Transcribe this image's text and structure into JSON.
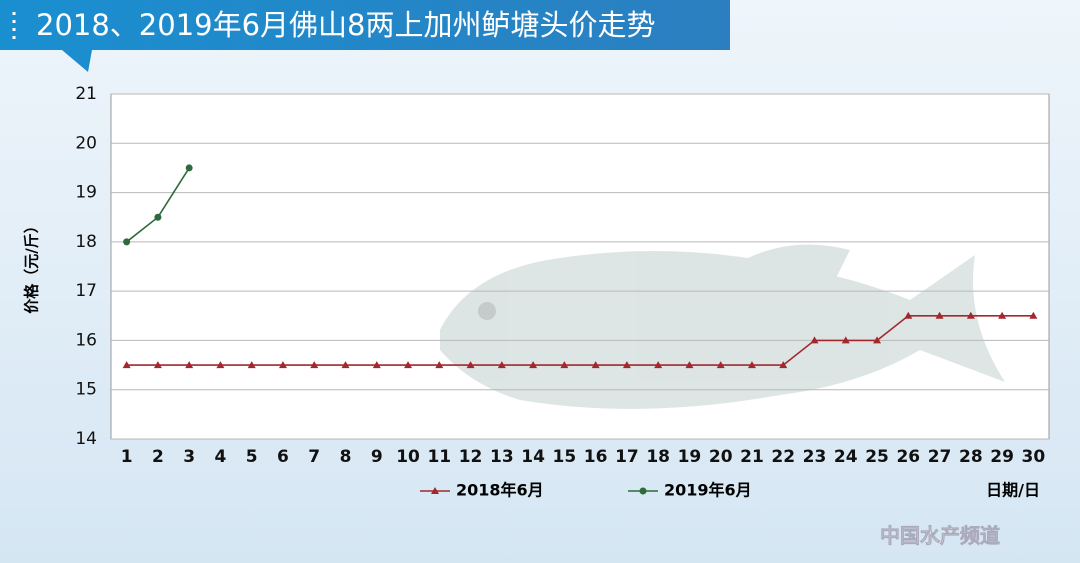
{
  "chart_data": {
    "type": "line",
    "title": "2018、2019年6月佛山8两上加州鲈塘头价走势",
    "y_label": "价格（元/斤）",
    "x_label": "日期/日",
    "categories": [
      1,
      2,
      3,
      4,
      5,
      6,
      7,
      8,
      9,
      10,
      11,
      12,
      13,
      14,
      15,
      16,
      17,
      18,
      19,
      20,
      21,
      22,
      23,
      24,
      25,
      26,
      27,
      28,
      29,
      30
    ],
    "series": [
      {
        "name": "2018年6月",
        "color": "#a3282e",
        "marker": "triangle",
        "values": [
          15.5,
          15.5,
          15.5,
          15.5,
          15.5,
          15.5,
          15.5,
          15.5,
          15.5,
          15.5,
          15.5,
          15.5,
          15.5,
          15.5,
          15.5,
          15.5,
          15.5,
          15.5,
          15.5,
          15.5,
          15.5,
          15.5,
          16,
          16,
          16,
          16.5,
          16.5,
          16.5,
          16.5,
          16.5
        ]
      },
      {
        "name": "2019年6月",
        "color": "#2d6b3c",
        "marker": "circle",
        "values": [
          18,
          18.5,
          19.5,
          null,
          null,
          null,
          null,
          null,
          null,
          null,
          null,
          null,
          null,
          null,
          null,
          null,
          null,
          null,
          null,
          null,
          null,
          null,
          null,
          null,
          null,
          null,
          null,
          null,
          null,
          null
        ]
      }
    ],
    "ylim": [
      14,
      21
    ],
    "yticks": [
      14,
      15,
      16,
      17,
      18,
      19,
      20,
      21
    ],
    "grid": true,
    "watermark": "中国水产频道"
  }
}
